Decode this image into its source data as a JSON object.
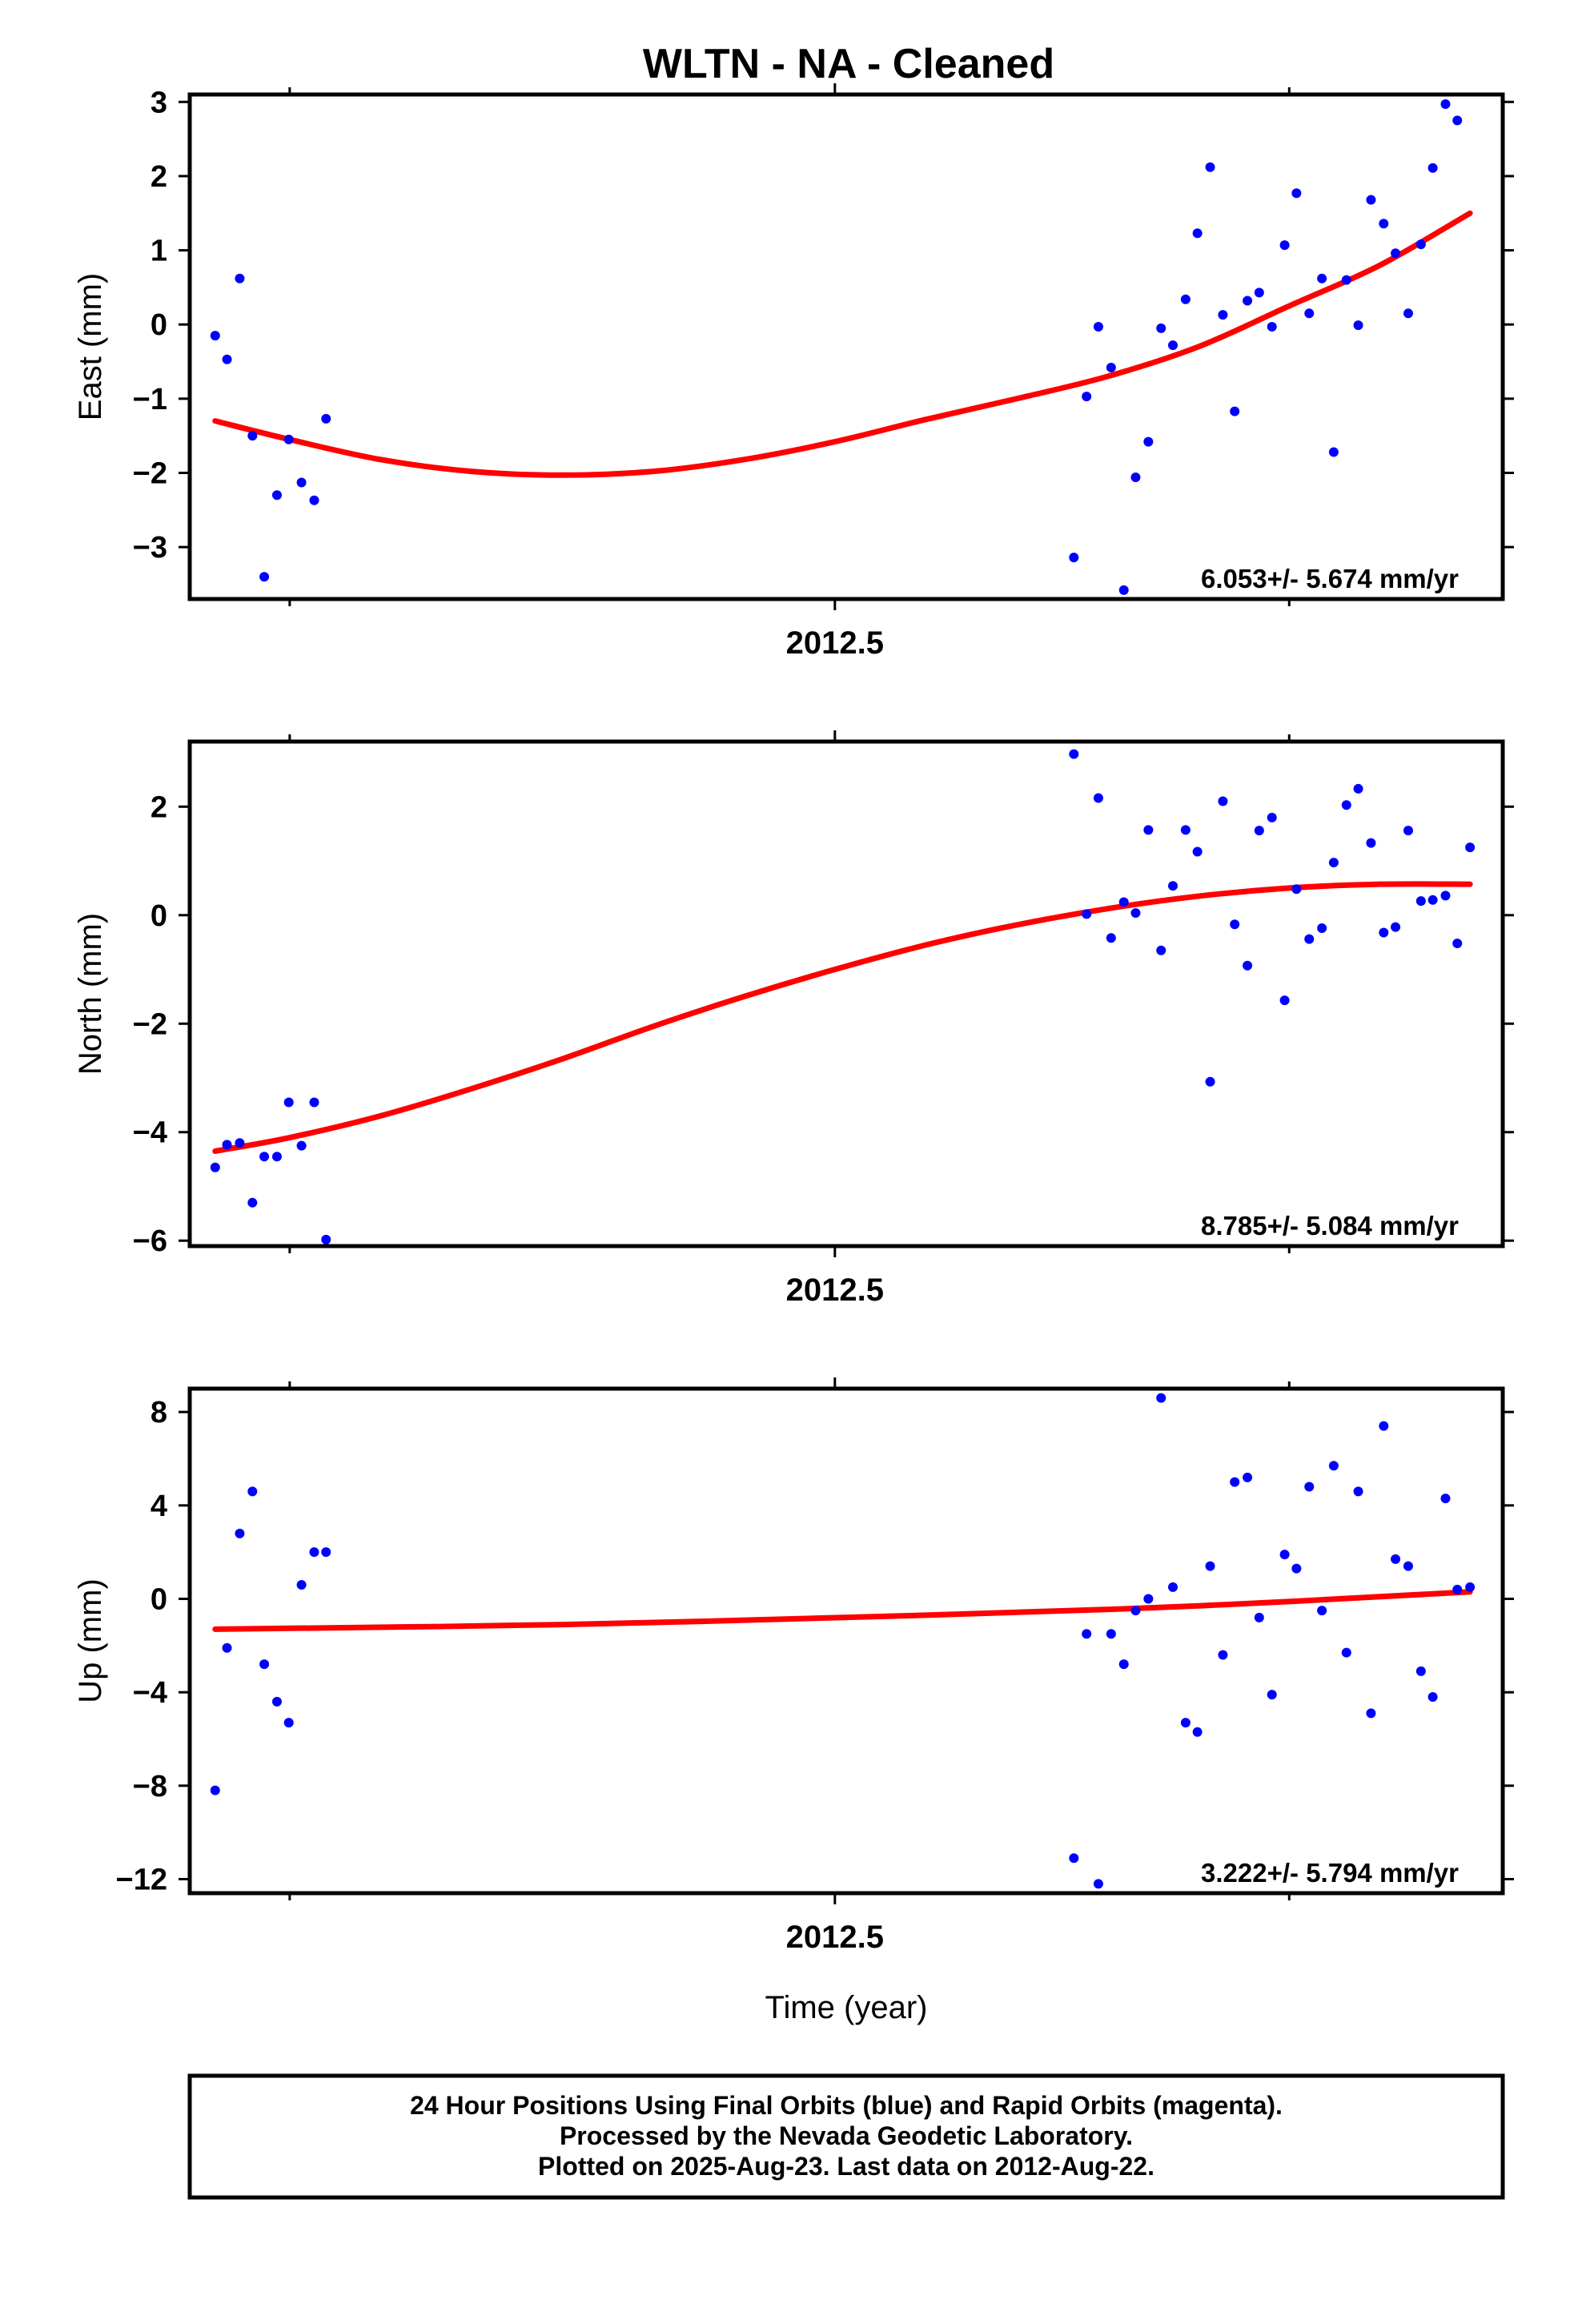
{
  "title": "WLTN  - NA - Cleaned",
  "footer": {
    "lines": [
      "24 Hour Positions Using Final Orbits (blue) and Rapid Orbits (magenta).",
      "Processed by the Nevada Geodetic Laboratory.",
      "Plotted on 2025-Aug-23. Last data on 2012-Aug-22."
    ]
  },
  "colors": {
    "points": "#0000ff",
    "fit": "#ff0000",
    "frame": "#000000"
  },
  "chart_data": [
    {
      "type": "scatter",
      "ylabel": "East (mm)",
      "xlabel": "",
      "xtick_label": "2012.5",
      "rate": "6.053+/- 5.674 mm/yr",
      "ylim": [
        -3.7,
        3.1
      ],
      "yticks": [
        -3,
        -2,
        -1,
        0,
        1,
        2,
        3
      ],
      "ytick_labels": [
        "−3",
        "−2",
        "−1",
        "0",
        "1",
        "2",
        "3"
      ],
      "x": [
        2011.818,
        2011.831,
        2011.845,
        2011.859,
        2011.872,
        2011.886,
        2011.899,
        2011.913,
        2011.927,
        2011.94,
        2012.763,
        2012.777,
        2012.79,
        2012.804,
        2012.818,
        2012.831,
        2012.845,
        2012.859,
        2012.872,
        2012.886,
        2012.899,
        2012.913,
        2012.927,
        2012.94,
        2012.954,
        2012.967,
        2012.981,
        2012.995,
        2013.008,
        2013.022,
        2013.036,
        2013.049,
        2013.063,
        2013.076,
        2013.09,
        2013.104,
        2013.117,
        2013.131,
        2013.145,
        2013.158,
        2013.172,
        2013.185
      ],
      "y": [
        -0.15,
        -0.47,
        0.62,
        -1.5,
        -3.4,
        -2.3,
        -1.55,
        -2.13,
        -2.37,
        -1.27,
        -3.14,
        -0.97,
        -0.03,
        -0.58,
        -3.58,
        -2.06,
        -1.58,
        -0.05,
        -0.28,
        0.34,
        1.23,
        2.12,
        0.13,
        -1.17,
        0.32,
        0.43,
        -0.03,
        1.07,
        1.77,
        0.15,
        0.62,
        -1.72,
        0.6,
        -0.01,
        1.68,
        1.36,
        0.96,
        0.15,
        1.08,
        2.11,
        2.97,
        2.75
      ],
      "fit": [
        [
          2011.818,
          -1.3
        ],
        [
          2011.9,
          -1.55
        ],
        [
          2012.0,
          -1.82
        ],
        [
          2012.1,
          -1.98
        ],
        [
          2012.2,
          -2.03
        ],
        [
          2012.3,
          -1.98
        ],
        [
          2012.4,
          -1.82
        ],
        [
          2012.5,
          -1.58
        ],
        [
          2012.6,
          -1.28
        ],
        [
          2012.7,
          -1.0
        ],
        [
          2012.8,
          -0.7
        ],
        [
          2012.9,
          -0.3
        ],
        [
          2013.0,
          0.25
        ],
        [
          2013.1,
          0.8
        ],
        [
          2013.199,
          1.5
        ]
      ]
    },
    {
      "type": "scatter",
      "ylabel": "North (mm)",
      "xlabel": "",
      "xtick_label": "2012.5",
      "rate": "8.785+/- 5.084 mm/yr",
      "ylim": [
        -6.1,
        3.2
      ],
      "yticks": [
        -6,
        -4,
        -2,
        0,
        2
      ],
      "ytick_labels": [
        "−6",
        "−4",
        "−2",
        "0",
        "2"
      ],
      "x": [
        2011.818,
        2011.831,
        2011.845,
        2011.859,
        2011.872,
        2011.886,
        2011.899,
        2011.913,
        2011.927,
        2011.94,
        2012.763,
        2012.777,
        2012.79,
        2012.804,
        2012.818,
        2012.831,
        2012.845,
        2012.859,
        2012.872,
        2012.886,
        2012.899,
        2012.913,
        2012.927,
        2012.94,
        2012.954,
        2012.967,
        2012.981,
        2012.995,
        2013.008,
        2013.022,
        2013.036,
        2013.049,
        2013.063,
        2013.076,
        2013.09,
        2013.104,
        2013.117,
        2013.131,
        2013.145,
        2013.158,
        2013.172,
        2013.185,
        2013.199
      ],
      "y": [
        -4.65,
        -4.23,
        -4.2,
        -5.3,
        -4.45,
        -4.45,
        -3.45,
        -4.25,
        -3.45,
        -5.98,
        2.97,
        0.02,
        2.16,
        -0.42,
        0.24,
        0.04,
        1.57,
        -0.65,
        0.54,
        1.57,
        1.17,
        -3.07,
        2.1,
        -0.17,
        -0.93,
        1.56,
        1.8,
        -1.57,
        0.48,
        -0.44,
        -0.24,
        0.97,
        2.03,
        2.33,
        1.33,
        -0.32,
        -0.22,
        1.56,
        0.26,
        0.28,
        0.36,
        -0.52,
        1.25
      ],
      "fit": [
        [
          2011.818,
          -4.35
        ],
        [
          2011.9,
          -4.1
        ],
        [
          2012.0,
          -3.7
        ],
        [
          2012.1,
          -3.2
        ],
        [
          2012.2,
          -2.65
        ],
        [
          2012.3,
          -2.05
        ],
        [
          2012.4,
          -1.5
        ],
        [
          2012.5,
          -1.0
        ],
        [
          2012.6,
          -0.55
        ],
        [
          2012.7,
          -0.18
        ],
        [
          2012.8,
          0.12
        ],
        [
          2012.9,
          0.35
        ],
        [
          2013.0,
          0.5
        ],
        [
          2013.1,
          0.57
        ],
        [
          2013.199,
          0.57
        ]
      ]
    },
    {
      "type": "scatter",
      "ylabel": "Up (mm)",
      "xlabel": "Time (year)",
      "xtick_label": "2012.5",
      "rate": "3.222+/- 5.794 mm/yr",
      "ylim": [
        -12.6,
        9.0
      ],
      "yticks": [
        -12,
        -8,
        -4,
        0,
        4,
        8
      ],
      "ytick_labels": [
        "−12",
        "−8",
        "−4",
        "0",
        "4",
        "8"
      ],
      "x": [
        2011.818,
        2011.831,
        2011.845,
        2011.859,
        2011.872,
        2011.886,
        2011.899,
        2011.913,
        2011.927,
        2011.94,
        2012.763,
        2012.777,
        2012.79,
        2012.804,
        2012.818,
        2012.831,
        2012.845,
        2012.859,
        2012.872,
        2012.886,
        2012.899,
        2012.913,
        2012.927,
        2012.94,
        2012.954,
        2012.967,
        2012.981,
        2012.995,
        2013.008,
        2013.022,
        2013.036,
        2013.049,
        2013.063,
        2013.076,
        2013.09,
        2013.104,
        2013.117,
        2013.131,
        2013.145,
        2013.158,
        2013.172,
        2013.185,
        2013.199
      ],
      "y": [
        -8.2,
        -2.1,
        2.8,
        4.6,
        -2.8,
        -4.4,
        -5.3,
        0.6,
        2.0,
        2.0,
        -11.1,
        -1.5,
        -12.2,
        -1.5,
        -2.8,
        -0.5,
        0.0,
        8.6,
        0.5,
        -5.3,
        -5.7,
        1.4,
        -2.4,
        5.0,
        5.2,
        -0.8,
        -4.1,
        1.9,
        1.3,
        4.8,
        -0.5,
        5.7,
        -2.3,
        4.6,
        -4.9,
        7.4,
        1.7,
        1.4,
        -3.1,
        -4.2,
        4.3,
        0.4,
        0.5
      ],
      "fit": [
        [
          2011.818,
          -1.3
        ],
        [
          2012.2,
          -1.1
        ],
        [
          2012.6,
          -0.7
        ],
        [
          2012.9,
          -0.3
        ],
        [
          2013.199,
          0.3
        ]
      ]
    }
  ]
}
